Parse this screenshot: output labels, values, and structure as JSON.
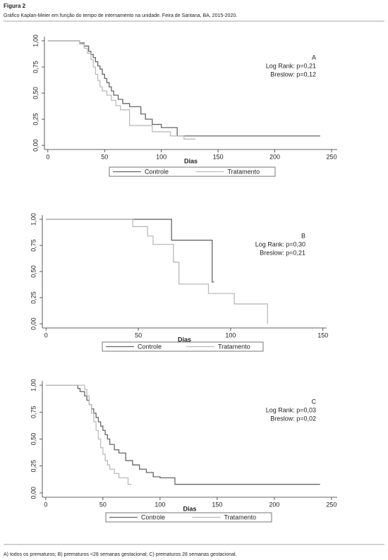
{
  "header": {
    "label": "Figura 2",
    "caption": "Gráfico Kaplan-Meier em função do tempo de internamento na unidade. Feira de Santana, BA, 2015-2020."
  },
  "chart_data": [
    {
      "type": "step",
      "xlabel": "Dias",
      "annotation": [
        "A",
        "Log Rank: p=0,21",
        "Breslow: p=0,12"
      ],
      "xlim": [
        -3,
        255
      ],
      "xticks": [
        0,
        50,
        100,
        150,
        200,
        250
      ],
      "ylim": [
        -0.04,
        1.04
      ],
      "yticks": [
        {
          "value": 0,
          "label": "0,00"
        },
        {
          "value": 0.25,
          "label": "0,25"
        },
        {
          "value": 0.5,
          "label": "0,50"
        },
        {
          "value": 0.75,
          "label": "0,75"
        },
        {
          "value": 1,
          "label": "1,00"
        }
      ],
      "series": [
        {
          "name": "Controle",
          "color": "#666666",
          "x": [
            0,
            28,
            32,
            36,
            38,
            40,
            42,
            44,
            46,
            48,
            50,
            52,
            54,
            56,
            58,
            62,
            66,
            72,
            82,
            86,
            92,
            100,
            114,
            240
          ],
          "values": [
            1,
            0.98,
            0.95,
            0.9,
            0.87,
            0.84,
            0.8,
            0.76,
            0.73,
            0.68,
            0.64,
            0.6,
            0.56,
            0.52,
            0.48,
            0.44,
            0.4,
            0.37,
            0.3,
            0.25,
            0.2,
            0.17,
            0.09,
            0.09
          ]
        },
        {
          "name": "Tratamento",
          "color": "#bbbbbb",
          "x": [
            0,
            28,
            32,
            35,
            38,
            40,
            42,
            44,
            46,
            48,
            52,
            56,
            60,
            64,
            72,
            92,
            108,
            120,
            130
          ],
          "values": [
            1,
            0.97,
            0.93,
            0.88,
            0.82,
            0.75,
            0.68,
            0.62,
            0.56,
            0.52,
            0.48,
            0.43,
            0.38,
            0.34,
            0.19,
            0.13,
            0.09,
            0.06,
            0.06
          ]
        }
      ]
    },
    {
      "type": "step",
      "xlabel": "Dias",
      "annotation": [
        "B",
        "Log Rank: p=0,30",
        "Breslow: p=0,21"
      ],
      "xlim": [
        -2,
        152
      ],
      "xticks": [
        0,
        50,
        100,
        150
      ],
      "ylim": [
        -0.04,
        1.04
      ],
      "yticks": [
        {
          "value": 0,
          "label": "0,00"
        },
        {
          "value": 0.25,
          "label": "0,25"
        },
        {
          "value": 0.5,
          "label": "0,50"
        },
        {
          "value": 0.75,
          "label": "0,75"
        },
        {
          "value": 1,
          "label": "1,00"
        }
      ],
      "series": [
        {
          "name": "Controle",
          "color": "#666666",
          "x": [
            0,
            68,
            90,
            91
          ],
          "values": [
            1,
            0.8,
            0.4,
            0.4
          ]
        },
        {
          "name": "Tratamento",
          "color": "#bbbbbb",
          "x": [
            0,
            47,
            55,
            58,
            69,
            72,
            88,
            102,
            120
          ],
          "values": [
            1,
            0.93,
            0.84,
            0.76,
            0.59,
            0.38,
            0.29,
            0.19,
            0
          ]
        }
      ]
    },
    {
      "type": "step",
      "xlabel": "Dias",
      "annotation": [
        "C",
        "Log Rank: p=0,03",
        "Breslow: p=0,02"
      ],
      "xlim": [
        -3,
        255
      ],
      "xticks": [
        0,
        50,
        100,
        150,
        200,
        250
      ],
      "ylim": [
        -0.04,
        1.04
      ],
      "yticks": [
        {
          "value": 0,
          "label": "0,00"
        },
        {
          "value": 0.25,
          "label": "0,25"
        },
        {
          "value": 0.5,
          "label": "0,50"
        },
        {
          "value": 0.75,
          "label": "0,75"
        },
        {
          "value": 1,
          "label": "1,00"
        }
      ],
      "series": [
        {
          "name": "Controle",
          "color": "#666666",
          "x": [
            0,
            28,
            30,
            34,
            36,
            38,
            40,
            42,
            44,
            46,
            48,
            50,
            52,
            54,
            56,
            60,
            64,
            70,
            76,
            82,
            88,
            94,
            100,
            113,
            240
          ],
          "values": [
            1,
            0.97,
            0.94,
            0.9,
            0.86,
            0.82,
            0.78,
            0.74,
            0.7,
            0.66,
            0.62,
            0.58,
            0.54,
            0.5,
            0.45,
            0.4,
            0.37,
            0.3,
            0.26,
            0.22,
            0.19,
            0.15,
            0.14,
            0.08,
            0.08
          ]
        },
        {
          "name": "Tratamento",
          "color": "#bbbbbb",
          "x": [
            0,
            34,
            36,
            38,
            40,
            42,
            44,
            46,
            48,
            50,
            52,
            54,
            56,
            60,
            64,
            72,
            75
          ],
          "values": [
            1,
            0.96,
            0.9,
            0.82,
            0.74,
            0.66,
            0.58,
            0.5,
            0.42,
            0.36,
            0.3,
            0.26,
            0.22,
            0.18,
            0.14,
            0.08,
            0.08
          ]
        }
      ]
    }
  ],
  "footnote": "A) todos os prematuros; B) prematuros <28 semanas gestacional; C) prematuros  28 semanas gestacional."
}
